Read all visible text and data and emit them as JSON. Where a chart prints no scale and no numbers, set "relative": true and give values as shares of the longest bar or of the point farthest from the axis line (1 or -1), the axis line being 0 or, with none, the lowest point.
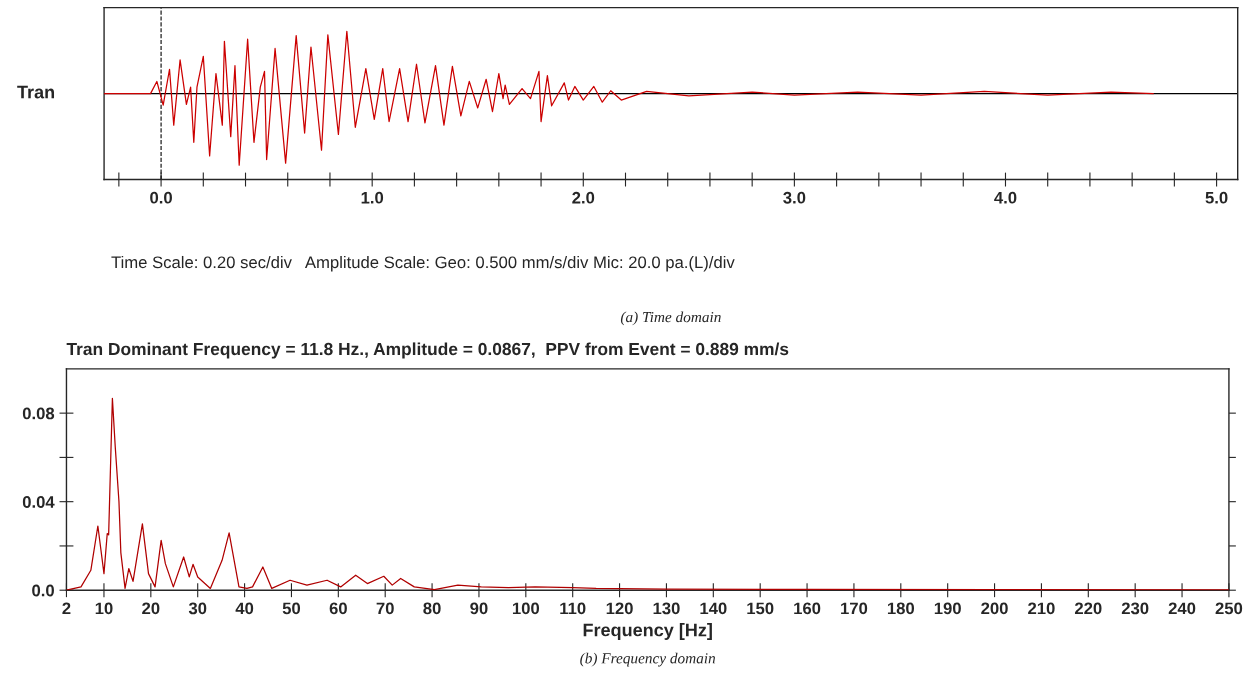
{
  "chart_data": [
    {
      "type": "line",
      "relative": true,
      "ylabel": "Tran",
      "color": "#cc0000",
      "line_style": "solid",
      "x": [
        -0.27,
        -0.05,
        -0.02,
        0.01,
        0.04,
        0.06,
        0.09,
        0.12,
        0.14,
        0.155,
        0.17,
        0.2,
        0.23,
        0.26,
        0.29,
        0.3,
        0.33,
        0.35,
        0.37,
        0.41,
        0.44,
        0.47,
        0.49,
        0.5,
        0.54,
        0.59,
        0.64,
        0.68,
        0.71,
        0.76,
        0.79,
        0.84,
        0.88,
        0.92,
        0.97,
        1.01,
        1.05,
        1.08,
        1.13,
        1.17,
        1.21,
        1.25,
        1.3,
        1.34,
        1.38,
        1.42,
        1.46,
        1.5,
        1.54,
        1.57,
        1.6,
        1.62,
        1.63,
        1.65,
        1.71,
        1.75,
        1.79,
        1.8,
        1.83,
        1.85,
        1.91,
        1.93,
        1.96,
        2.0,
        2.05,
        2.09,
        2.13,
        2.18,
        2.3,
        2.5,
        2.8,
        3.0,
        3.3,
        3.6,
        3.9,
        4.2,
        4.5,
        4.7
      ],
      "values": [
        0,
        0,
        0.17,
        -0.16,
        0.34,
        -0.44,
        0.47,
        -0.15,
        0.09,
        -0.68,
        0.09,
        0.52,
        -0.87,
        0.28,
        -0.44,
        0.73,
        -0.6,
        0.39,
        -1,
        0.76,
        -0.68,
        0.09,
        0.31,
        -0.92,
        0.63,
        -0.97,
        0.81,
        -0.55,
        0.65,
        -0.79,
        0.82,
        -0.57,
        0.87,
        -0.47,
        0.35,
        -0.36,
        0.35,
        -0.39,
        0.35,
        -0.39,
        0.41,
        -0.41,
        0.39,
        -0.44,
        0.38,
        -0.31,
        0.17,
        -0.2,
        0.2,
        -0.25,
        0.28,
        -0.07,
        0.12,
        -0.15,
        0.07,
        -0.07,
        0.31,
        -0.39,
        0.25,
        -0.17,
        0.15,
        -0.09,
        0.1,
        -0.09,
        0.1,
        -0.12,
        0.04,
        -0.09,
        0.03,
        -0.03,
        0.02,
        -0.02,
        0.02,
        -0.02,
        0.03,
        -0.02,
        0.02,
        0
      ],
      "xlim": [
        -0.27,
        5.1
      ],
      "xticks": [
        {
          "value": -0.2,
          "label": null
        },
        {
          "value": 0.0,
          "label": "0.0"
        },
        {
          "value": 0.2,
          "label": null
        },
        {
          "value": 0.4,
          "label": null
        },
        {
          "value": 0.6,
          "label": null
        },
        {
          "value": 0.8,
          "label": null
        },
        {
          "value": 1.0,
          "label": "1.0"
        },
        {
          "value": 1.2,
          "label": null
        },
        {
          "value": 1.4,
          "label": null
        },
        {
          "value": 1.6,
          "label": null
        },
        {
          "value": 1.8,
          "label": null
        },
        {
          "value": 2.0,
          "label": "2.0"
        },
        {
          "value": 2.2,
          "label": null
        },
        {
          "value": 2.4,
          "label": null
        },
        {
          "value": 2.6,
          "label": null
        },
        {
          "value": 2.8,
          "label": null
        },
        {
          "value": 3.0,
          "label": "3.0"
        },
        {
          "value": 3.2,
          "label": null
        },
        {
          "value": 3.4,
          "label": null
        },
        {
          "value": 3.6,
          "label": null
        },
        {
          "value": 3.8,
          "label": null
        },
        {
          "value": 4.0,
          "label": "4.0"
        },
        {
          "value": 4.2,
          "label": null
        },
        {
          "value": 4.4,
          "label": null
        },
        {
          "value": 4.6,
          "label": null
        },
        {
          "value": 4.8,
          "label": null
        },
        {
          "value": 5.0,
          "label": "5.0"
        }
      ],
      "ref_lines": [
        {
          "axis": "x",
          "value": 0,
          "line_style": "dashed",
          "color": "#000000"
        }
      ],
      "annotations": [
        "Time Scale: 0.20 sec/div   Amplitude Scale: Geo: 0.500 mm/s/div Mic: 20.0 pa.(L)/div",
        "(a) Time domain"
      ]
    },
    {
      "type": "line",
      "title": "Tran Dominant Frequency = 11.8 Hz., Amplitude = 0.0867,  PPV from Event = 0.889 mm/s",
      "xlabel": "Frequency [Hz]",
      "color": "#b00000",
      "line_style": "solid",
      "x": [
        2,
        5.1,
        7.2,
        8.7,
        10,
        10.7,
        11,
        11.8,
        12.4,
        13.2,
        13.6,
        14.5,
        15.3,
        16.2,
        18.2,
        19.5,
        20.9,
        22.2,
        23.1,
        24.8,
        27,
        28.2,
        29,
        30,
        32.7,
        35.2,
        36.7,
        38.8,
        40.5,
        41.7,
        43.9,
        45.8,
        49.7,
        53.3,
        57.6,
        60.5,
        63.7,
        66.2,
        69.7,
        71.5,
        73.3,
        76.2,
        80.5,
        85.5,
        90.5,
        96.3,
        102,
        110,
        115,
        130,
        160,
        200,
        250
      ],
      "values": [
        0,
        0.0015,
        0.009,
        0.029,
        0.0075,
        0.0256,
        0.025,
        0.0867,
        0.065,
        0.04,
        0.017,
        0.0008,
        0.0098,
        0.004,
        0.03,
        0.0075,
        0.0015,
        0.0225,
        0.012,
        0.0015,
        0.015,
        0.006,
        0.0117,
        0.006,
        0.0008,
        0.0135,
        0.0259,
        0.0015,
        0.0008,
        0.0015,
        0.0105,
        0.0008,
        0.0045,
        0.0023,
        0.0045,
        0.0015,
        0.0068,
        0.003,
        0.0063,
        0.0023,
        0.0053,
        0.0015,
        0.0003,
        0.0023,
        0.0015,
        0.0012,
        0.0015,
        0.0012,
        0.0008,
        0.0005,
        0.0004,
        0.0003,
        0.0002
      ],
      "xlim": [
        2,
        250
      ],
      "ylim": [
        0,
        0.1
      ],
      "xticks": [
        2,
        10,
        20,
        30,
        40,
        50,
        60,
        70,
        80,
        90,
        100,
        110,
        120,
        130,
        140,
        150,
        160,
        170,
        180,
        190,
        200,
        210,
        220,
        230,
        240,
        250
      ],
      "yticks": [
        {
          "value": 0.0,
          "label": "0.0"
        },
        {
          "value": 0.02,
          "label": null
        },
        0.04,
        {
          "value": 0.06,
          "label": null
        },
        0.08
      ],
      "annotations": [
        "(b) Frequency domain"
      ]
    }
  ]
}
